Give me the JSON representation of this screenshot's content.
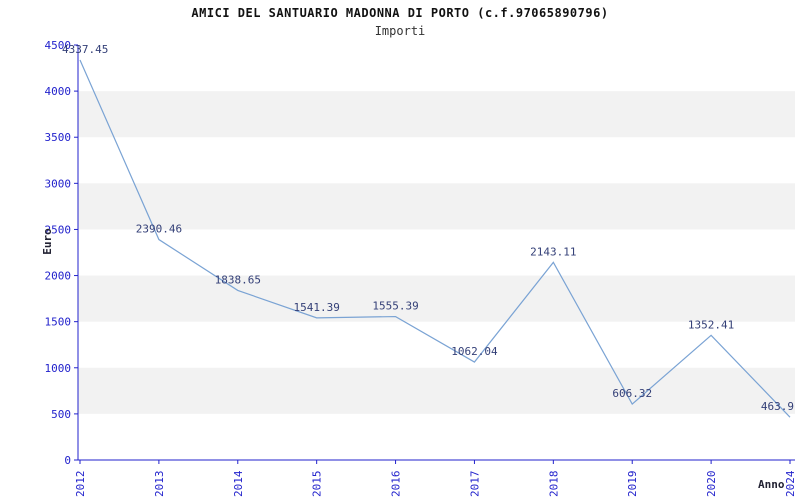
{
  "header": {
    "title": "AMICI DEL SANTUARIO MADONNA DI PORTO (c.f.97065890796)",
    "subtitle": "Importi"
  },
  "axes": {
    "y_label": "Euro",
    "x_label": "Anno"
  },
  "chart_data": {
    "type": "line",
    "title": "AMICI DEL SANTUARIO MADONNA DI PORTO (c.f.97065890796)",
    "subtitle": "Importi",
    "xlabel": "Anno",
    "ylabel": "Euro",
    "categories": [
      "2012",
      "2013",
      "2014",
      "2015",
      "2016",
      "2017",
      "2018",
      "2019",
      "2020",
      "2024"
    ],
    "values": [
      4337.45,
      2390.46,
      1838.65,
      1541.39,
      1555.39,
      1062.04,
      2143.11,
      606.32,
      1352.41,
      463.9
    ],
    "point_labels": [
      "4337.45",
      "2390.46",
      "1838.65",
      "1541.39",
      "1555.39",
      "1062.04",
      "2143.11",
      "606.32",
      "1352.41",
      "463.9"
    ],
    "ylim": [
      0,
      4500
    ],
    "ytick_step": 500,
    "ytick_labels": [
      "0",
      "500",
      "1000",
      "1500",
      "2000",
      "2500",
      "3000",
      "3500",
      "4000",
      "4500"
    ],
    "grid": "horizontal-alternating-bands",
    "legend_position": "none",
    "colors": {
      "line": "#7aa3d4",
      "tick_label": "#2222cc",
      "axis_line": "#2222cc",
      "point_label": "#333f77",
      "band": "#f2f2f2",
      "background": "#ffffff"
    }
  }
}
